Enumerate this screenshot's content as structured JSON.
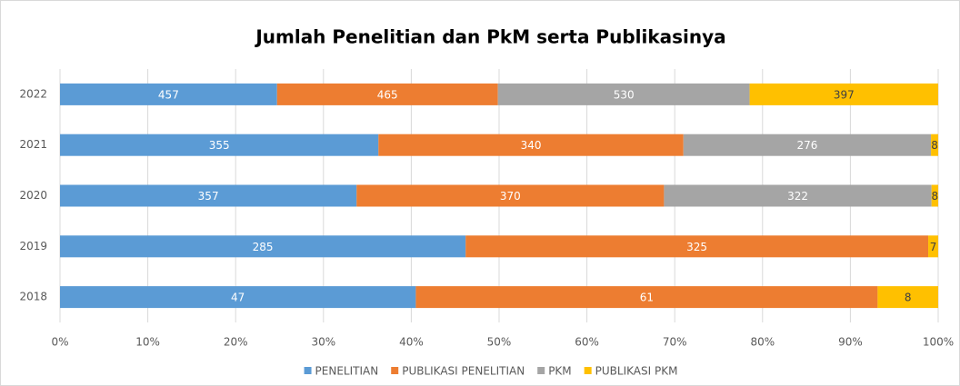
{
  "chart_data": {
    "type": "bar",
    "orientation": "horizontal",
    "stacking": "percent",
    "title": "Jumlah Penelitian dan PkM serta Publikasinya",
    "categories": [
      "2018",
      "2019",
      "2020",
      "2021",
      "2022"
    ],
    "series": [
      {
        "name": "PENELITIAN",
        "color": "#5b9bd5",
        "values": [
          47,
          285,
          357,
          355,
          457
        ]
      },
      {
        "name": "PUBLIKASI PENELITIAN",
        "color": "#ed7d31",
        "values": [
          61,
          325,
          370,
          340,
          465
        ]
      },
      {
        "name": "PKM",
        "color": "#a5a5a5",
        "values": [
          null,
          null,
          322,
          276,
          530
        ]
      },
      {
        "name": "PUBLIKASI PKM",
        "color": "#ffc000",
        "values": [
          8,
          7,
          8,
          8,
          397
        ]
      }
    ],
    "xlim": [
      0,
      100
    ],
    "xticks": [
      {
        "value": 0,
        "label": "0%"
      },
      {
        "value": 10,
        "label": "10%"
      },
      {
        "value": 20,
        "label": "20%"
      },
      {
        "value": 30,
        "label": "30%"
      },
      {
        "value": 40,
        "label": "40%"
      },
      {
        "value": 50,
        "label": "50%"
      },
      {
        "value": 60,
        "label": "60%"
      },
      {
        "value": 70,
        "label": "70%"
      },
      {
        "value": 80,
        "label": "80%"
      },
      {
        "value": 90,
        "label": "90%"
      },
      {
        "value": 100,
        "label": "100%"
      }
    ],
    "grid": true,
    "legend": "bottom"
  }
}
